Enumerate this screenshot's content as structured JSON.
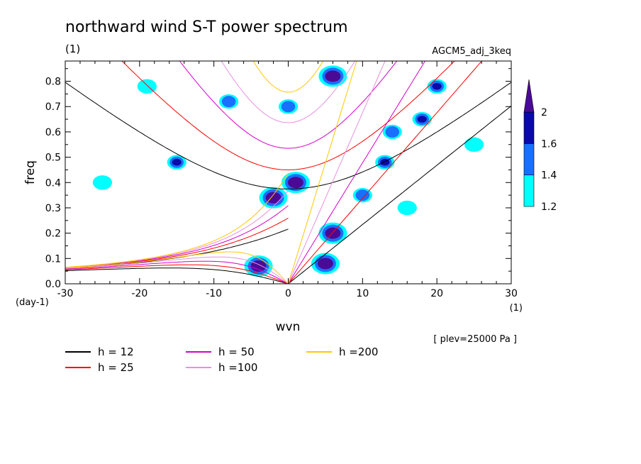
{
  "chart_data": {
    "type": "heatmap",
    "title": "northward wind S-T power spectrum",
    "unit_label": "(1)",
    "experiment": "AGCM5_adj_3keq",
    "xlabel": "wvn",
    "ylabel": "freq",
    "x_unit": "(1)",
    "y_unit": "(day-1)",
    "xlim": [
      -30,
      30
    ],
    "ylim": [
      0,
      0.88
    ],
    "xticks": [
      -30,
      -20,
      -10,
      0,
      10,
      20,
      30
    ],
    "xtick_labels": [
      "-30",
      "-20",
      "-10",
      "0",
      "10",
      "20",
      "30"
    ],
    "yticks": [
      0,
      0.1,
      0.2,
      0.3,
      0.4,
      0.5,
      0.6,
      0.7,
      0.8
    ],
    "ytick_labels": [
      "0.0",
      "0.1",
      "0.2",
      "0.3",
      "0.4",
      "0.5",
      "0.6",
      "0.7",
      "0.8"
    ],
    "note": "[ plev=25000 Pa ]",
    "colorbar": {
      "levels": [
        1.2,
        1.4,
        1.6,
        2
      ],
      "labels": [
        "1.2",
        "1.4",
        "1.6",
        "2"
      ],
      "colors": [
        "#00ffff",
        "#1a6fff",
        "#0a0aa8",
        "#4b0a96"
      ]
    },
    "dispersion_curves": [
      {
        "label": "h = 12",
        "h": 12,
        "color": "#000000"
      },
      {
        "label": "h = 25",
        "h": 25,
        "color": "#ff0000"
      },
      {
        "label": "h = 50",
        "h": 50,
        "color": "#d400c8"
      },
      {
        "label": "h =100",
        "h": 100,
        "color": "#e890e0"
      },
      {
        "label": "h =200",
        "h": 200,
        "color": "#ffc800"
      }
    ],
    "power_regions": [
      {
        "x": 5,
        "y": 0.08,
        "level": 2
      },
      {
        "x": 6,
        "y": 0.2,
        "level": 2
      },
      {
        "x": -4,
        "y": 0.07,
        "level": 2
      },
      {
        "x": -2,
        "y": 0.34,
        "level": 2
      },
      {
        "x": 1,
        "y": 0.4,
        "level": 2
      },
      {
        "x": 6,
        "y": 0.82,
        "level": 2
      },
      {
        "x": 13,
        "y": 0.48,
        "level": 1.6
      },
      {
        "x": 20,
        "y": 0.78,
        "level": 1.6
      },
      {
        "x": 18,
        "y": 0.65,
        "level": 1.6
      },
      {
        "x": -15,
        "y": 0.48,
        "level": 1.6
      },
      {
        "x": 10,
        "y": 0.35,
        "level": 1.4
      },
      {
        "x": 14,
        "y": 0.6,
        "level": 1.4
      },
      {
        "x": -8,
        "y": 0.72,
        "level": 1.4
      },
      {
        "x": 0,
        "y": 0.7,
        "level": 1.4
      },
      {
        "x": -19,
        "y": 0.78,
        "level": 1.2
      },
      {
        "x": 25,
        "y": 0.55,
        "level": 1.2
      },
      {
        "x": -25,
        "y": 0.4,
        "level": 1.2
      },
      {
        "x": 16,
        "y": 0.3,
        "level": 1.2
      }
    ]
  }
}
